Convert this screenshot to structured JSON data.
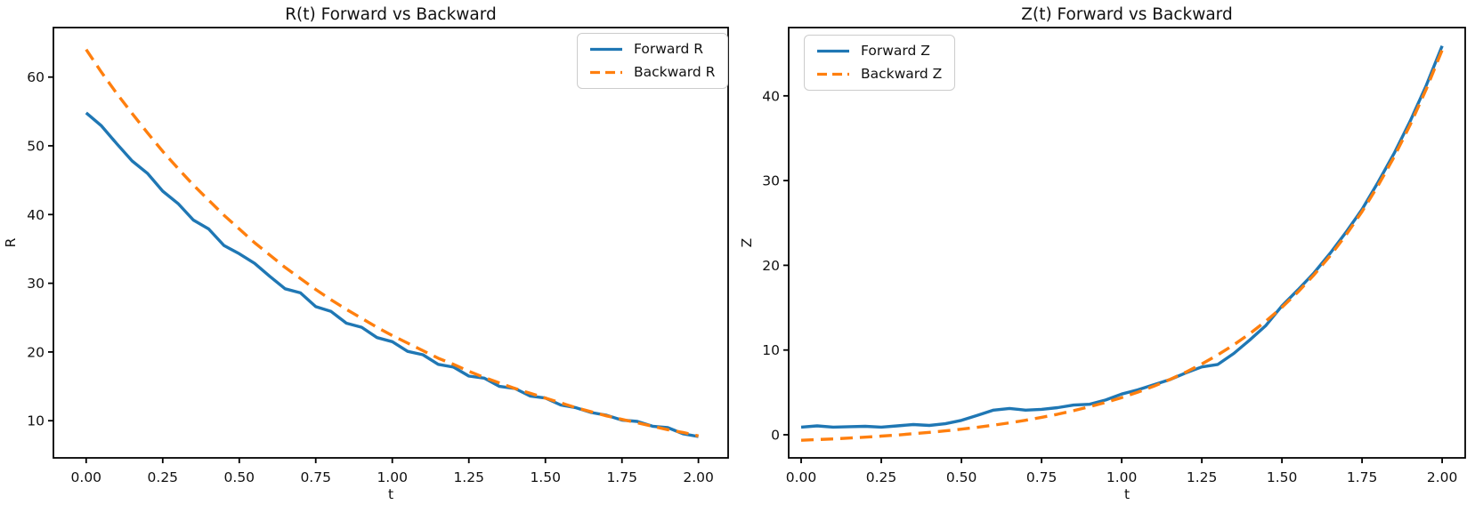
{
  "figure": {
    "background": "#ffffff",
    "accent_blue": "#1f77b4",
    "accent_orange": "#ff7f0e"
  },
  "chart_data": [
    {
      "type": "line",
      "title": "R(t) Forward vs Backward",
      "xlabel": "t",
      "ylabel": "R",
      "xlim": [
        -0.107,
        2.097
      ],
      "ylim": [
        4.6,
        67.2
      ],
      "grid": false,
      "legend_position": "upper right",
      "x_tick_values": [
        0,
        0.25,
        0.5,
        0.75,
        1.0,
        1.25,
        1.5,
        1.75,
        2.0
      ],
      "x_tick_labels": [
        "0.00",
        "0.25",
        "0.50",
        "0.75",
        "1.00",
        "1.25",
        "1.50",
        "1.75",
        "2.00"
      ],
      "y_tick_values": [
        10,
        20,
        30,
        40,
        50,
        60
      ],
      "y_tick_labels": [
        "10",
        "20",
        "30",
        "40",
        "50",
        "60"
      ],
      "x": [
        0,
        0.05,
        0.1,
        0.15,
        0.2,
        0.25,
        0.3,
        0.35,
        0.4,
        0.45,
        0.5,
        0.55,
        0.6,
        0.65,
        0.7,
        0.75,
        0.8,
        0.85,
        0.9,
        0.95,
        1.0,
        1.05,
        1.1,
        1.15,
        1.2,
        1.25,
        1.3,
        1.35,
        1.4,
        1.45,
        1.5,
        1.55,
        1.6,
        1.65,
        1.7,
        1.75,
        1.8,
        1.85,
        1.9,
        1.95,
        2.0
      ],
      "series": [
        {
          "name": "Forward R",
          "color": "#1f77b4",
          "style": "solid",
          "values": [
            54.8,
            52.9,
            50.3,
            47.8,
            46.0,
            43.4,
            41.6,
            39.2,
            37.9,
            35.5,
            34.3,
            32.9,
            31.0,
            29.2,
            28.6,
            26.6,
            25.9,
            24.2,
            23.6,
            22.1,
            21.5,
            20.1,
            19.6,
            18.2,
            17.8,
            16.5,
            16.2,
            15.0,
            14.7,
            13.6,
            13.3,
            12.3,
            11.9,
            11.2,
            10.8,
            10.1,
            9.9,
            9.2,
            9.0,
            8.1,
            7.7
          ]
        },
        {
          "name": "Backward R",
          "color": "#ff7f0e",
          "style": "dashed",
          "values": [
            64.0,
            60.7,
            57.6,
            54.7,
            51.9,
            49.2,
            46.7,
            44.3,
            42.1,
            39.9,
            37.9,
            35.9,
            34.1,
            32.3,
            30.7,
            29.1,
            27.6,
            26.2,
            24.9,
            23.6,
            22.4,
            21.3,
            20.2,
            19.1,
            18.2,
            17.2,
            16.3,
            15.5,
            14.7,
            14.0,
            13.3,
            12.6,
            11.9,
            11.3,
            10.7,
            10.2,
            9.7,
            9.2,
            8.7,
            8.3,
            7.8
          ]
        }
      ]
    },
    {
      "type": "line",
      "title": "Z(t) Forward vs Backward",
      "xlabel": "t",
      "ylabel": "Z",
      "xlim": [
        -0.039,
        2.072
      ],
      "ylim": [
        -2.73,
        48.06
      ],
      "grid": false,
      "legend_position": "upper left",
      "x_tick_values": [
        0,
        0.25,
        0.5,
        0.75,
        1.0,
        1.25,
        1.5,
        1.75,
        2.0
      ],
      "x_tick_labels": [
        "0.00",
        "0.25",
        "0.50",
        "0.75",
        "1.00",
        "1.25",
        "1.50",
        "1.75",
        "2.00"
      ],
      "y_tick_values": [
        0,
        10,
        20,
        30,
        40
      ],
      "y_tick_labels": [
        "0",
        "10",
        "20",
        "30",
        "40"
      ],
      "x": [
        0,
        0.05,
        0.1,
        0.15,
        0.2,
        0.25,
        0.3,
        0.35,
        0.4,
        0.45,
        0.5,
        0.55,
        0.6,
        0.65,
        0.7,
        0.75,
        0.8,
        0.85,
        0.9,
        0.95,
        1.0,
        1.05,
        1.1,
        1.15,
        1.2,
        1.25,
        1.3,
        1.35,
        1.4,
        1.45,
        1.5,
        1.55,
        1.6,
        1.65,
        1.7,
        1.75,
        1.8,
        1.85,
        1.9,
        1.95,
        2.0
      ],
      "series": [
        {
          "name": "Forward Z",
          "color": "#1f77b4",
          "style": "solid",
          "values": [
            0.9,
            1.05,
            0.9,
            0.95,
            1.0,
            0.9,
            1.05,
            1.2,
            1.1,
            1.3,
            1.7,
            2.3,
            2.9,
            3.1,
            2.9,
            3.0,
            3.2,
            3.5,
            3.6,
            4.1,
            4.8,
            5.3,
            5.9,
            6.5,
            7.3,
            8.0,
            8.3,
            9.6,
            11.2,
            12.9,
            15.2,
            17.1,
            19.1,
            21.4,
            23.9,
            26.6,
            29.8,
            33.2,
            37.0,
            41.2,
            45.9
          ]
        },
        {
          "name": "Backward Z",
          "color": "#ff7f0e",
          "style": "dashed",
          "values": [
            -0.65,
            -0.57,
            -0.49,
            -0.39,
            -0.28,
            -0.16,
            -0.03,
            0.12,
            0.28,
            0.46,
            0.66,
            0.88,
            1.13,
            1.4,
            1.71,
            2.05,
            2.42,
            2.84,
            3.31,
            3.82,
            4.39,
            5.03,
            5.73,
            6.52,
            7.39,
            8.35,
            9.43,
            10.62,
            11.94,
            13.41,
            15.04,
            16.85,
            18.87,
            21.1,
            23.58,
            26.34,
            29.4,
            32.79,
            36.57,
            40.76,
            45.41
          ]
        }
      ]
    }
  ]
}
